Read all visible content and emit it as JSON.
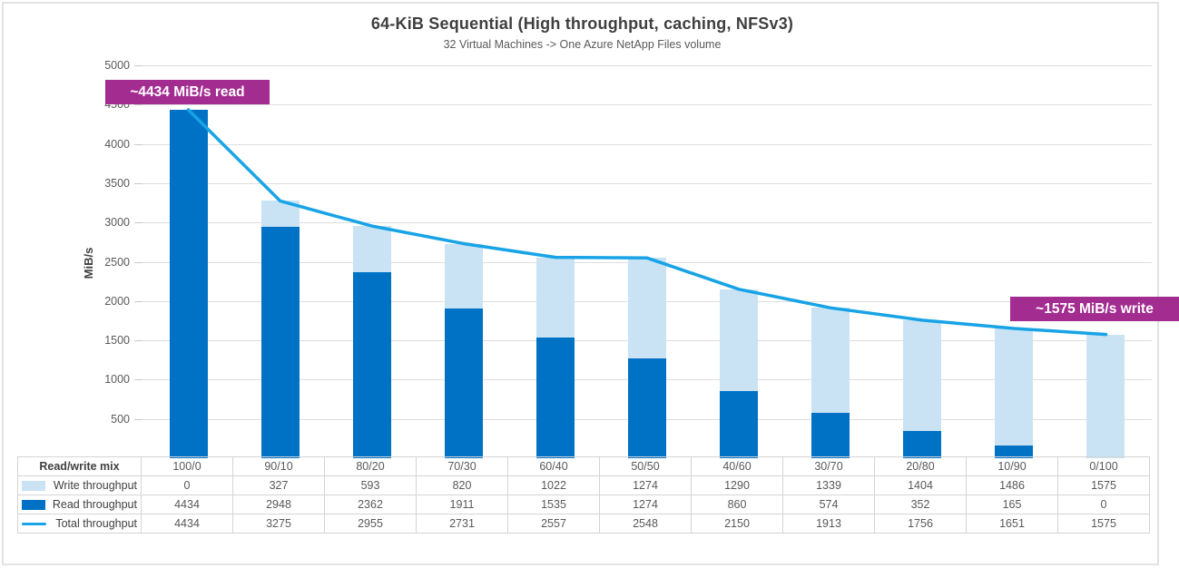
{
  "header": {
    "title": "64-KiB Sequential (High throughput, caching, NFSv3)",
    "subtitle": "32 Virtual Machines -> One Azure NetApp Files volume"
  },
  "annotations": {
    "read": "~4434 MiB/s read",
    "write": "~1575 MiB/s write"
  },
  "colors": {
    "read_bar": "#0072C6",
    "write_bar": "#C9E3F5",
    "total_line": "#18A3E6",
    "annotation_bg": "#A22C8F",
    "gridline": "#DEDEDE",
    "table_border": "#D4D4D4"
  },
  "chart_data": {
    "type": "bar",
    "subtype": "stacked-column-with-line-overlay-and-data-table",
    "title": "64-KiB Sequential (High throughput, caching, NFSv3)",
    "subtitle": "32 Virtual Machines -> One Azure NetApp Files volume",
    "xlabel": "",
    "ylabel": "MiB/s",
    "x_header": "Read/write mix",
    "ylim": [
      0,
      5000
    ],
    "ytick_step": 500,
    "grid": true,
    "legend_position": "table-left",
    "categories": [
      "100/0",
      "90/10",
      "80/20",
      "70/30",
      "60/40",
      "50/50",
      "40/60",
      "30/70",
      "20/80",
      "10/90",
      "0/100"
    ],
    "series": [
      {
        "name": "Write throughput",
        "type": "bar",
        "stack": "top",
        "values": [
          0,
          327,
          593,
          820,
          1022,
          1274,
          1290,
          1339,
          1404,
          1486,
          1575
        ]
      },
      {
        "name": "Read throughput",
        "type": "bar",
        "stack": "bottom",
        "values": [
          4434,
          2948,
          2362,
          1911,
          1535,
          1274,
          860,
          574,
          352,
          165,
          0
        ]
      },
      {
        "name": "Total throughput",
        "type": "line",
        "values": [
          4434,
          3275,
          2955,
          2731,
          2557,
          2548,
          2150,
          1913,
          1756,
          1651,
          1575
        ]
      }
    ]
  }
}
